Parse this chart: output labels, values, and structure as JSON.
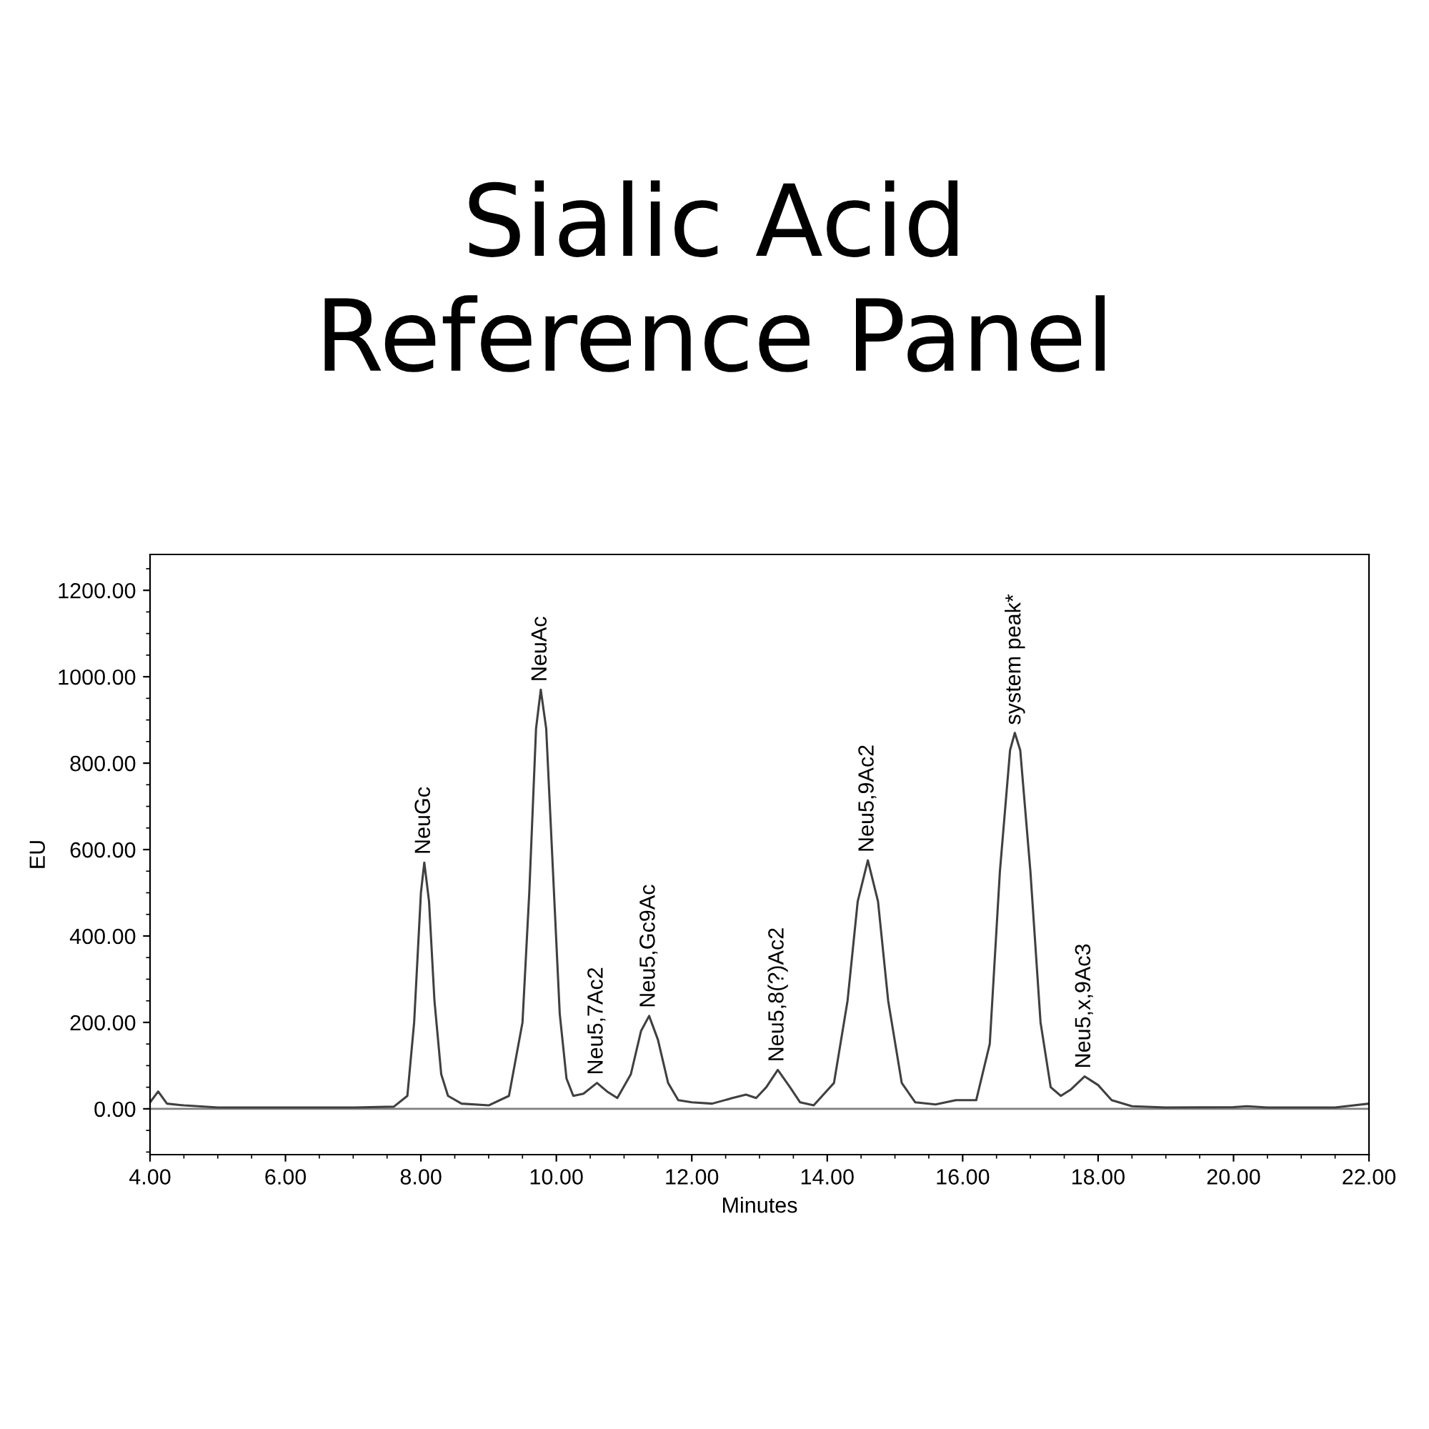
{
  "chart_data": {
    "type": "line",
    "title": "Sialic Acid\nReference Panel",
    "xlabel": "Minutes",
    "ylabel": "EU",
    "x": [
      4.0,
      4.12,
      4.25,
      4.5,
      5.0,
      6.0,
      7.0,
      7.6,
      7.8,
      7.9,
      8.0,
      8.05,
      8.12,
      8.2,
      8.3,
      8.4,
      8.6,
      9.0,
      9.3,
      9.5,
      9.6,
      9.7,
      9.77,
      9.85,
      9.95,
      10.05,
      10.15,
      10.25,
      10.4,
      10.6,
      10.75,
      10.9,
      11.1,
      11.25,
      11.37,
      11.5,
      11.65,
      11.8,
      12.0,
      12.3,
      12.6,
      12.8,
      12.95,
      13.1,
      13.27,
      13.45,
      13.6,
      13.8,
      14.1,
      14.3,
      14.45,
      14.6,
      14.75,
      14.9,
      15.1,
      15.3,
      15.6,
      15.9,
      16.2,
      16.4,
      16.55,
      16.7,
      16.77,
      16.85,
      17.0,
      17.15,
      17.3,
      17.45,
      17.6,
      17.8,
      18.0,
      18.2,
      18.5,
      19.0,
      20.0,
      20.2,
      20.5,
      21.5,
      22.0
    ],
    "series": [
      {
        "color": "#404040",
        "values": [
          15,
          40,
          12,
          8,
          3,
          3,
          3,
          5,
          30,
          200,
          500,
          570,
          480,
          250,
          80,
          30,
          12,
          8,
          30,
          200,
          500,
          880,
          970,
          880,
          550,
          220,
          70,
          30,
          35,
          60,
          40,
          25,
          80,
          180,
          215,
          160,
          60,
          20,
          15,
          12,
          25,
          33,
          25,
          50,
          90,
          50,
          15,
          8,
          60,
          250,
          480,
          575,
          480,
          250,
          60,
          15,
          10,
          20,
          20,
          150,
          550,
          830,
          870,
          830,
          550,
          200,
          50,
          30,
          45,
          75,
          55,
          20,
          6,
          3,
          4,
          6,
          3,
          3,
          12
        ]
      }
    ],
    "xlim": [
      4,
      22
    ],
    "ylim": [
      -106,
      1283
    ],
    "xticks": [
      {
        "value": 4,
        "label": "4.00"
      },
      {
        "value": 6,
        "label": "6.00"
      },
      {
        "value": 8,
        "label": "8.00"
      },
      {
        "value": 10,
        "label": "10.00"
      },
      {
        "value": 12,
        "label": "12.00"
      },
      {
        "value": 14,
        "label": "14.00"
      },
      {
        "value": 16,
        "label": "16.00"
      },
      {
        "value": 18,
        "label": "18.00"
      },
      {
        "value": 20,
        "label": "20.00"
      },
      {
        "value": 22,
        "label": "22.00"
      }
    ],
    "yticks": [
      {
        "value": 0,
        "label": "0.00"
      },
      {
        "value": 200,
        "label": "200.00"
      },
      {
        "value": 400,
        "label": "400.00"
      },
      {
        "value": 600,
        "label": "600.00"
      },
      {
        "value": 800,
        "label": "800.00"
      },
      {
        "value": 1000,
        "label": "1000.00"
      },
      {
        "value": 1200,
        "label": "1200.00"
      }
    ],
    "ref_lines": [
      {
        "axis": "y",
        "value": 0,
        "color": "#808080"
      }
    ],
    "annotations": [
      {
        "text": "NeuGc",
        "x": 8.05,
        "y": 570
      },
      {
        "text": "NeuAc",
        "x": 9.77,
        "y": 970
      },
      {
        "text": "Neu5,7Ac2",
        "x": 10.6,
        "y": 60
      },
      {
        "text": "Neu5,Gc9Ac",
        "x": 11.37,
        "y": 215
      },
      {
        "text": "Neu5,8(?)Ac2",
        "x": 13.27,
        "y": 90
      },
      {
        "text": "Neu5,9Ac2",
        "x": 14.6,
        "y": 575
      },
      {
        "text": "system peak*",
        "x": 16.77,
        "y": 870
      },
      {
        "text": "Neu5,x,9Ac3",
        "x": 17.8,
        "y": 75
      }
    ],
    "grid": false,
    "legend": false
  }
}
